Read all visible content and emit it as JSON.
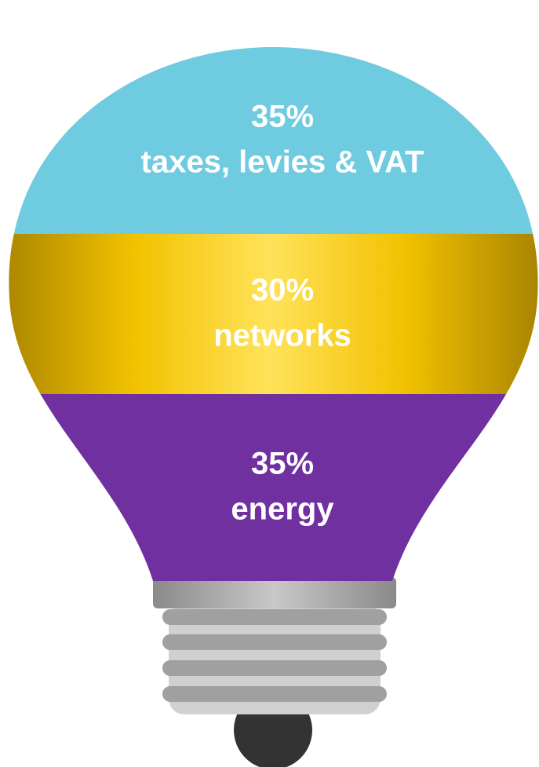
{
  "chart_data": {
    "type": "bar",
    "categories": [
      "taxes, levies & VAT",
      "networks",
      "energy"
    ],
    "values": [
      35,
      30,
      35
    ],
    "value_labels": [
      "35%",
      "30%",
      "35%"
    ],
    "colors": [
      "#6fcbe0",
      "#f5c400",
      "#7030a0"
    ]
  }
}
